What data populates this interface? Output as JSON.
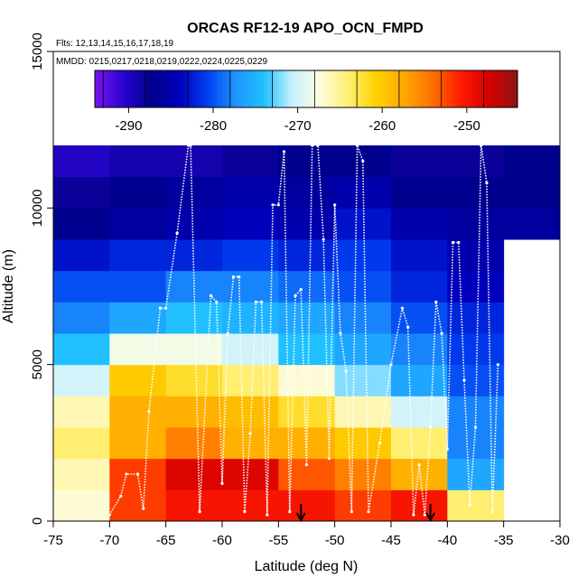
{
  "chart_data": {
    "type": "heatmap",
    "title": "ORCAS RF12-19 APO_OCN_FMPD",
    "flights_text": "Flts: 12,13,14,15,16,17,18,19",
    "mmdd_text": "MMDD: 0215,0217,0218,0219,0222,0224,0225,0229",
    "xlabel": "Latitude (deg N)",
    "ylabel": "Altitude (m)",
    "xlim": [
      -75,
      -30
    ],
    "ylim": [
      0,
      15000
    ],
    "x_ticks": [
      -75,
      -70,
      -65,
      -60,
      -55,
      -50,
      -45,
      -40,
      -35,
      -30
    ],
    "y_ticks": [
      0,
      5000,
      10000,
      15000
    ],
    "colorbar": {
      "range": [
        -294,
        -244
      ],
      "ticks": [
        -290,
        -280,
        -270,
        -260,
        -250
      ],
      "colors": [
        "#7b12ee",
        "#2b05d2",
        "#00008a",
        "#0000bb",
        "#003ff0",
        "#1e95ff",
        "#20c0ff",
        "#c6f1ff",
        "#fdfde0",
        "#ffee70",
        "#ffd200",
        "#ffa700",
        "#ff6f00",
        "#ff1a00",
        "#d40000",
        "#8c1414"
      ]
    },
    "lat_bins": [
      -72.5,
      -67.5,
      -62.5,
      -57.5,
      -52.5,
      -47.5,
      -42.5,
      -37.5,
      -32.5
    ],
    "alt_bins": [
      500,
      1500,
      2500,
      3500,
      4500,
      5500,
      6500,
      7500,
      8500,
      9500,
      10500,
      11500
    ],
    "cells": [
      [
        -267,
        -266,
        -264,
        -266,
        -270,
        -274,
        -278,
        -280,
        -283,
        -287,
        -288,
        -290
      ],
      [
        -252,
        -252,
        -258,
        -258,
        -260,
        -268,
        -276,
        -280,
        -282,
        -286,
        -287,
        -289
      ],
      [
        -250,
        -248,
        -255,
        -258,
        -262,
        -268,
        -274,
        -278,
        -282,
        -285,
        -286,
        -289
      ],
      [
        -250,
        -248,
        -258,
        -259,
        -264,
        -270,
        -275,
        -278,
        -281,
        -284,
        -285,
        -288
      ],
      [
        -250,
        -253,
        -258,
        -262,
        -267,
        -274,
        -276,
        -279,
        -282,
        -285,
        -286,
        -287
      ],
      [
        -252,
        -255,
        -260,
        -266,
        -272,
        -276,
        -278,
        -280,
        -281,
        -283,
        -285,
        -287
      ],
      [
        -250,
        -258,
        -264,
        -270,
        -276,
        -278,
        -280,
        -282,
        -283,
        -285,
        -287,
        -288
      ],
      [
        -264,
        -276,
        -278,
        -278,
        -280,
        -281,
        -282,
        -284,
        -285,
        -286,
        -287,
        -288
      ],
      [
        null,
        null,
        null,
        null,
        null,
        null,
        null,
        null,
        null,
        -286,
        -287,
        -287
      ]
    ],
    "trajectory_lat": [
      -70.0,
      -69.0,
      -68.5,
      -67.5,
      -67.0,
      -66.5,
      -65.5,
      -65.0,
      -64.0,
      -63.0,
      -62.8,
      -62.0,
      -61.0,
      -60.5,
      -60.0,
      -59.5,
      -59.0,
      -58.5,
      -58.0,
      -57.5,
      -57.0,
      -56.5,
      -56.0,
      -55.5,
      -55.0,
      -54.5,
      -54.0,
      -53.5,
      -53.0,
      -52.5,
      -52.0,
      -51.5,
      -51.0,
      -50.5,
      -50.0,
      -49.5,
      -49.0,
      -48.5,
      -48.0,
      -47.5,
      -47.0,
      -46.0,
      -45.0,
      -44.0,
      -43.5,
      -43.0,
      -42.5,
      -42.0,
      -41.5,
      -41.0,
      -40.5,
      -40.0,
      -39.5,
      -39.0,
      -38.5,
      -38.0,
      -37.5,
      -37.0,
      -36.5,
      -36.0,
      -35.5
    ],
    "trajectory_alt": [
      200,
      800,
      1500,
      1500,
      400,
      3500,
      6800,
      6800,
      9200,
      12000,
      12000,
      300,
      7200,
      7000,
      1200,
      6000,
      7800,
      7800,
      300,
      2800,
      7000,
      7000,
      200,
      10100,
      10100,
      11800,
      300,
      7200,
      7400,
      1800,
      12000,
      12000,
      9000,
      2000,
      10100,
      6000,
      4800,
      300,
      12000,
      11500,
      300,
      2500,
      5000,
      6800,
      6200,
      200,
      1800,
      200,
      3000,
      7000,
      6000,
      2300,
      8900,
      8900,
      4500,
      500,
      3000,
      12000,
      10800,
      300,
      5000
    ],
    "arrows_lat": [
      -53.0,
      -41.5
    ]
  }
}
